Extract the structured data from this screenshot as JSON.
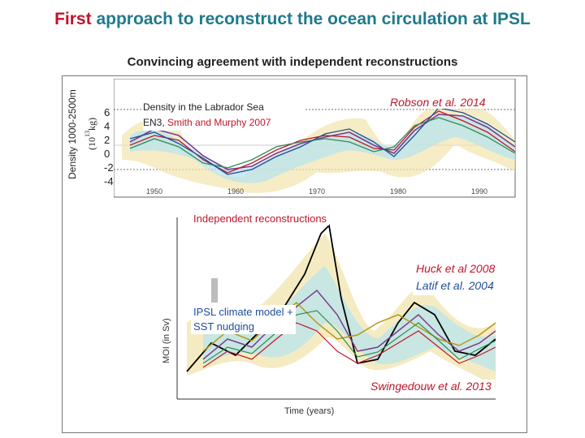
{
  "title": {
    "accent": "First",
    "rest": " approach to reconstruct the ocean circulation at IPSL"
  },
  "subtitle": "Convincing agreement with independent reconstructions",
  "top_panel": {
    "ylabel_outer": "Density 1000-2500m",
    "ylabel_inner": "(10",
    "ylabel_inner_sup": "13",
    "ylabel_inner_tail": "kg)",
    "yticks": [
      "6",
      "4",
      "2",
      "0",
      "-2",
      "-4"
    ],
    "legend_line1": "Density in the Labrador Sea",
    "legend_line2_a": "EN3, ",
    "legend_line2_b": "Smith and Murphy 2007",
    "citation": "Robson et al. 2014"
  },
  "bottom_panel": {
    "label": "Independent reconstructions",
    "ref1": "Huck et al 2008",
    "ref2": "Latif et al. 2004",
    "model_line1": "IPSL climate model +",
    "model_line2": "SST nudging",
    "citation": "Swingedouw et al. 2013"
  },
  "colors": {
    "red": "#c0152a",
    "teal": "#1f7a8c",
    "blue": "#1f4e9c"
  }
}
